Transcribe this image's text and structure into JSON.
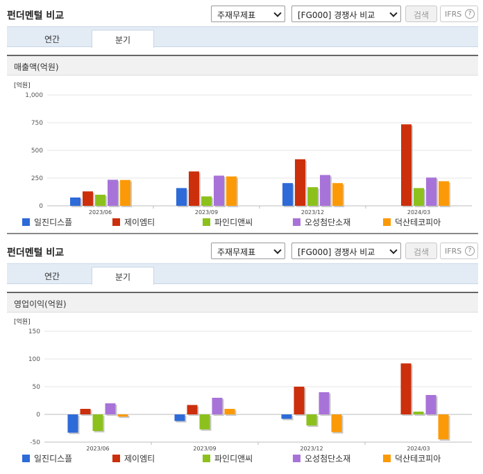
{
  "panels": [
    {
      "title": "펀더멘털 비교",
      "select1": "주재무제표",
      "select2": "[FG000] 경쟁사 비교",
      "search_btn": "검색",
      "ifrs_btn": "IFRS",
      "help": "?",
      "tabs": [
        "연간",
        "분기"
      ],
      "section": "매출액(억원)",
      "unit": "[억원]"
    },
    {
      "title": "펀더멘털 비교",
      "select1": "주재무제표",
      "select2": "[FG000] 경쟁사 비교",
      "search_btn": "검색",
      "ifrs_btn": "IFRS",
      "help": "?",
      "tabs": [
        "연간",
        "분기"
      ],
      "section": "영업이익(억원)",
      "unit": "[억원]"
    }
  ],
  "chart_data": [
    {
      "type": "bar",
      "title": "매출액(억원)",
      "categories": [
        "2023/06",
        "2023/09",
        "2023/12",
        "2024/03"
      ],
      "yticks": [
        "0",
        "250",
        "500",
        "750",
        "1,000"
      ],
      "ylim": [
        0,
        1000
      ],
      "series": [
        {
          "name": "일진디스플",
          "color": "#2e6ad8",
          "values": [
            75,
            160,
            205,
            0
          ]
        },
        {
          "name": "제이엠티",
          "color": "#cc2f0b",
          "values": [
            130,
            310,
            420,
            735
          ]
        },
        {
          "name": "파인디앤씨",
          "color": "#8cc11d",
          "values": [
            100,
            85,
            168,
            160
          ]
        },
        {
          "name": "오성첨단소재",
          "color": "#a873d8",
          "values": [
            235,
            272,
            278,
            255
          ]
        },
        {
          "name": "덕산테코피아",
          "color": "#fb9a06",
          "values": [
            233,
            265,
            205,
            222
          ]
        }
      ],
      "grid": true,
      "legend": "bottom"
    },
    {
      "type": "bar",
      "title": "영업이익(억원)",
      "categories": [
        "2023/06",
        "2023/09",
        "2023/12",
        "2024/03"
      ],
      "yticks": [
        "-50",
        "0",
        "50",
        "100",
        "150"
      ],
      "ylim": [
        -50,
        150
      ],
      "series": [
        {
          "name": "일진디스플",
          "color": "#2e6ad8",
          "values": [
            -33,
            -12,
            -8,
            0
          ]
        },
        {
          "name": "제이엠티",
          "color": "#cc2f0b",
          "values": [
            10,
            17,
            50,
            92
          ]
        },
        {
          "name": "파인디앤씨",
          "color": "#8cc11d",
          "values": [
            -30,
            -27,
            -20,
            5
          ]
        },
        {
          "name": "오성첨단소재",
          "color": "#a873d8",
          "values": [
            20,
            30,
            40,
            35
          ]
        },
        {
          "name": "덕산테코피아",
          "color": "#fb9a06",
          "values": [
            -4,
            10,
            -32,
            -45
          ]
        }
      ],
      "grid": true,
      "legend": "bottom"
    }
  ]
}
